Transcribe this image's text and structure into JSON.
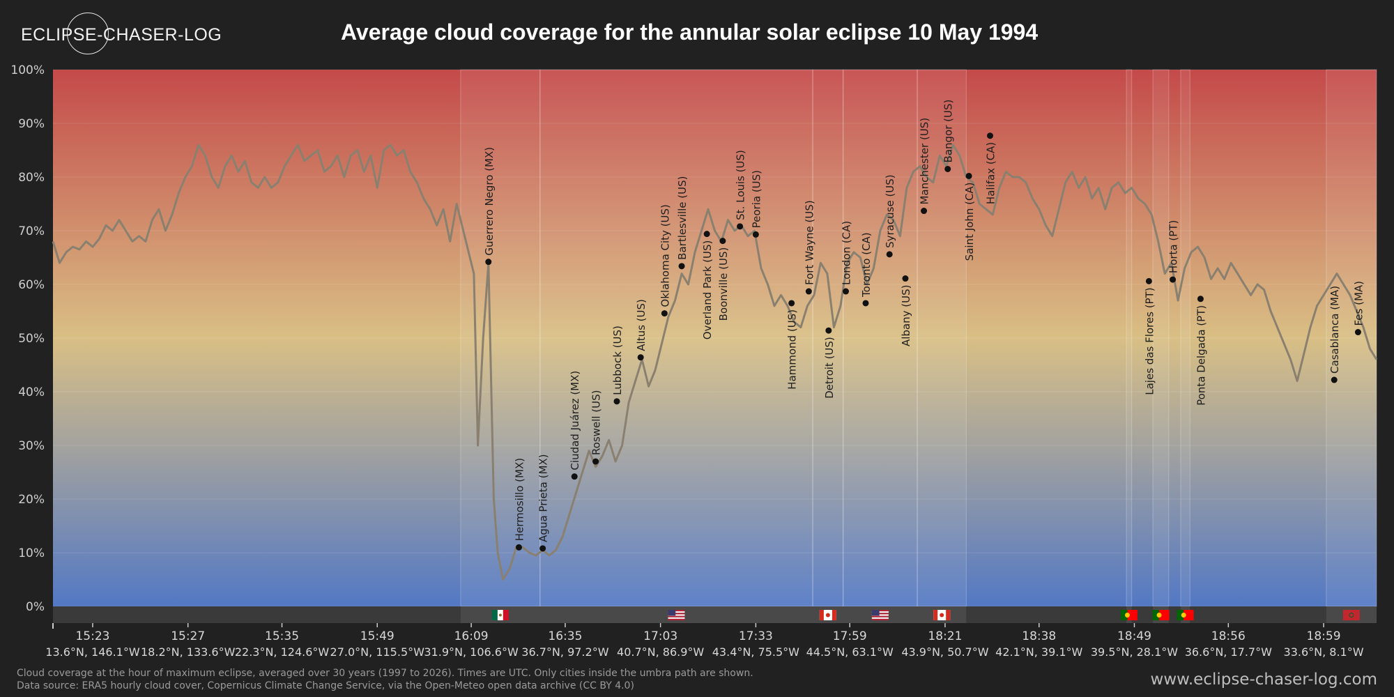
{
  "brand": {
    "name": "ECLIPSE-CHASER-LOG"
  },
  "header": {
    "title": "Average cloud coverage for the annular solar eclipse 10 May 1994"
  },
  "footer": {
    "note": "Cloud coverage at the hour of maximum eclipse, averaged over 30 years (1997 to 2026). Times are UTC. Only cities inside the umbra path are shown.",
    "source": "Data source: ERA5 hourly cloud cover, Copernicus Climate Change Service, via the Open-Meteo open data archive (CC BY 4.0)",
    "website": "www.eclipse-chaser-log.com"
  },
  "colors": {
    "background": "#212121",
    "gradient_top": "#c44a4a",
    "gradient_mid": "#d9bf85",
    "gradient_bottom": "#5378c4",
    "line": "#8a8070",
    "band": "#3a3a3a"
  },
  "chart_data": {
    "type": "line",
    "ylim": [
      0,
      100
    ],
    "y_ticks": [
      "0%",
      "10%",
      "20%",
      "30%",
      "40%",
      "50%",
      "60%",
      "70%",
      "80%",
      "90%",
      "100%"
    ],
    "x_domain": [
      0,
      100
    ],
    "x_ticks": [
      {
        "x": 3.0,
        "time": "15:23",
        "coord": "13.6°N, 146.1°W"
      },
      {
        "x": 10.2,
        "time": "15:27",
        "coord": "18.2°N, 133.6°W"
      },
      {
        "x": 17.3,
        "time": "15:35",
        "coord": "22.3°N, 124.6°W"
      },
      {
        "x": 24.5,
        "time": "15:49",
        "coord": "27.0°N, 115.5°W"
      },
      {
        "x": 31.6,
        "time": "16:09",
        "coord": "31.9°N, 106.6°W"
      },
      {
        "x": 38.7,
        "time": "16:35",
        "coord": "36.7°N, 97.2°W"
      },
      {
        "x": 45.9,
        "time": "17:03",
        "coord": "40.7°N, 86.9°W"
      },
      {
        "x": 53.1,
        "time": "17:33",
        "coord": "43.4°N, 75.5°W"
      },
      {
        "x": 60.2,
        "time": "17:59",
        "coord": "44.5°N, 63.1°W"
      },
      {
        "x": 67.4,
        "time": "18:21",
        "coord": "43.9°N, 50.7°W"
      },
      {
        "x": 74.5,
        "time": "18:38",
        "coord": "42.1°N, 39.1°W"
      },
      {
        "x": 81.7,
        "time": "18:49",
        "coord": "39.5°N, 28.1°W"
      },
      {
        "x": 88.8,
        "time": "18:56",
        "coord": "36.6°N, 17.7°W"
      },
      {
        "x": 96.0,
        "time": "18:59",
        "coord": "33.6°N, 8.1°W"
      }
    ],
    "series": [
      {
        "points": [
          [
            0,
            68
          ],
          [
            0.5,
            64
          ],
          [
            1,
            66
          ],
          [
            1.5,
            67
          ],
          [
            2,
            66.5
          ],
          [
            2.5,
            68
          ],
          [
            3,
            67
          ],
          [
            3.5,
            68.5
          ],
          [
            4,
            71
          ],
          [
            4.5,
            70
          ],
          [
            5,
            72
          ],
          [
            5.5,
            70
          ],
          [
            6,
            68
          ],
          [
            6.5,
            69
          ],
          [
            7,
            68
          ],
          [
            7.5,
            72
          ],
          [
            8,
            74
          ],
          [
            8.5,
            70
          ],
          [
            9,
            73
          ],
          [
            9.5,
            77
          ],
          [
            10,
            80
          ],
          [
            10.5,
            82
          ],
          [
            11,
            86
          ],
          [
            11.5,
            84
          ],
          [
            12,
            80
          ],
          [
            12.5,
            78
          ],
          [
            13,
            82
          ],
          [
            13.5,
            84
          ],
          [
            14,
            81
          ],
          [
            14.5,
            83
          ],
          [
            15,
            79
          ],
          [
            15.5,
            78
          ],
          [
            16,
            80
          ],
          [
            16.5,
            78
          ],
          [
            17,
            79
          ],
          [
            17.5,
            82
          ],
          [
            18,
            84
          ],
          [
            18.5,
            86
          ],
          [
            19,
            83
          ],
          [
            19.5,
            84
          ],
          [
            20,
            85
          ],
          [
            20.5,
            81
          ],
          [
            21,
            82
          ],
          [
            21.5,
            84
          ],
          [
            22,
            80
          ],
          [
            22.5,
            84
          ],
          [
            23,
            85
          ],
          [
            23.5,
            81
          ],
          [
            24,
            84
          ],
          [
            24.5,
            78
          ],
          [
            25,
            85
          ],
          [
            25.5,
            86
          ],
          [
            26,
            84
          ],
          [
            26.5,
            85
          ],
          [
            27,
            81
          ],
          [
            27.5,
            79
          ],
          [
            28,
            76
          ],
          [
            28.5,
            74
          ],
          [
            29,
            71
          ],
          [
            29.5,
            74
          ],
          [
            30,
            68
          ],
          [
            30.5,
            75
          ],
          [
            31,
            70
          ],
          [
            31.8,
            62
          ],
          [
            32.1,
            30
          ],
          [
            32.5,
            50
          ],
          [
            32.9,
            64
          ],
          [
            33.3,
            20
          ],
          [
            33.6,
            10
          ],
          [
            34.0,
            5
          ],
          [
            34.5,
            7
          ],
          [
            35.0,
            11
          ],
          [
            35.5,
            11
          ],
          [
            36.0,
            10
          ],
          [
            36.5,
            9.5
          ],
          [
            37.0,
            10.5
          ],
          [
            37.5,
            9.5
          ],
          [
            38.0,
            10.5
          ],
          [
            38.5,
            13
          ],
          [
            39.0,
            17
          ],
          [
            39.5,
            21
          ],
          [
            40.0,
            25
          ],
          [
            40.5,
            29
          ],
          [
            41.0,
            26
          ],
          [
            41.5,
            28
          ],
          [
            42.0,
            31
          ],
          [
            42.5,
            27
          ],
          [
            43.0,
            30
          ],
          [
            43.5,
            38
          ],
          [
            44.0,
            42
          ],
          [
            44.5,
            46
          ],
          [
            45.0,
            41
          ],
          [
            45.5,
            44
          ],
          [
            46.0,
            49
          ],
          [
            46.5,
            54
          ],
          [
            47.0,
            57
          ],
          [
            47.5,
            62
          ],
          [
            48.0,
            60
          ],
          [
            48.5,
            66
          ],
          [
            49.0,
            70
          ],
          [
            49.5,
            74
          ],
          [
            50.0,
            70
          ],
          [
            50.5,
            68
          ],
          [
            51.0,
            72
          ],
          [
            51.5,
            70
          ],
          [
            52.0,
            71
          ],
          [
            52.5,
            69
          ],
          [
            53.0,
            70
          ],
          [
            53.5,
            63
          ],
          [
            54.0,
            60
          ],
          [
            54.5,
            56
          ],
          [
            55.0,
            58
          ],
          [
            55.5,
            56
          ],
          [
            56.0,
            53
          ],
          [
            56.5,
            52
          ],
          [
            57.0,
            56
          ],
          [
            57.5,
            58
          ],
          [
            58.0,
            64
          ],
          [
            58.5,
            62
          ],
          [
            59.0,
            52
          ],
          [
            59.5,
            56
          ],
          [
            60.0,
            64
          ],
          [
            60.5,
            66
          ],
          [
            61.0,
            65
          ],
          [
            61.5,
            60
          ],
          [
            62.0,
            63
          ],
          [
            62.5,
            70
          ],
          [
            63.0,
            73
          ],
          [
            63.5,
            72
          ],
          [
            64.0,
            69
          ],
          [
            64.5,
            78
          ],
          [
            65.0,
            81
          ],
          [
            65.5,
            82
          ],
          [
            66.0,
            80
          ],
          [
            66.5,
            79
          ],
          [
            67.0,
            84
          ],
          [
            67.5,
            82
          ],
          [
            68.0,
            86
          ],
          [
            68.5,
            84
          ],
          [
            69.0,
            80
          ],
          [
            69.5,
            79
          ],
          [
            70.0,
            75
          ],
          [
            70.5,
            74
          ],
          [
            71.0,
            73
          ],
          [
            71.5,
            78
          ],
          [
            72.0,
            81
          ],
          [
            72.5,
            80
          ],
          [
            73.0,
            80
          ],
          [
            73.5,
            79
          ],
          [
            74.0,
            76
          ],
          [
            74.5,
            74
          ],
          [
            75.0,
            71
          ],
          [
            75.5,
            69
          ],
          [
            76.0,
            74
          ],
          [
            76.5,
            79
          ],
          [
            77.0,
            81
          ],
          [
            77.5,
            78
          ],
          [
            78.0,
            80
          ],
          [
            78.5,
            76
          ],
          [
            79.0,
            78
          ],
          [
            79.5,
            74
          ],
          [
            80.0,
            78
          ],
          [
            80.5,
            79
          ],
          [
            81.0,
            77
          ],
          [
            81.5,
            78
          ],
          [
            82.0,
            76
          ],
          [
            82.5,
            75
          ],
          [
            83.0,
            73
          ],
          [
            83.5,
            68
          ],
          [
            84.0,
            62
          ],
          [
            84.5,
            64
          ],
          [
            85.0,
            57
          ],
          [
            85.5,
            63
          ],
          [
            86.0,
            66
          ],
          [
            86.5,
            67
          ],
          [
            87.0,
            65
          ],
          [
            87.5,
            61
          ],
          [
            88.0,
            63
          ],
          [
            88.5,
            61
          ],
          [
            89.0,
            64
          ],
          [
            89.5,
            62
          ],
          [
            90.0,
            60
          ],
          [
            90.5,
            58
          ],
          [
            91.0,
            60
          ],
          [
            91.5,
            59
          ],
          [
            92.0,
            55
          ],
          [
            92.5,
            52
          ],
          [
            93.0,
            49
          ],
          [
            93.5,
            46
          ],
          [
            94.0,
            42
          ],
          [
            94.5,
            47
          ],
          [
            95.0,
            52
          ],
          [
            95.5,
            56
          ],
          [
            96.0,
            58
          ],
          [
            96.5,
            60
          ],
          [
            97.0,
            62
          ],
          [
            97.5,
            60
          ],
          [
            98.0,
            58
          ],
          [
            98.5,
            55
          ],
          [
            99.0,
            52
          ],
          [
            99.5,
            48
          ],
          [
            100.0,
            46
          ]
        ]
      }
    ],
    "cities": [
      {
        "name": "Guerrero Negro (MX)",
        "x": 32.9,
        "y": 64.2,
        "label_pos": "above"
      },
      {
        "name": "Hermosillo (MX)",
        "x": 35.2,
        "y": 11,
        "label_pos": "above"
      },
      {
        "name": "Agua Prieta (MX)",
        "x": 37.0,
        "y": 10.8,
        "label_pos": "above"
      },
      {
        "name": "Ciudad Juárez (MX)",
        "x": 39.4,
        "y": 24.2,
        "label_pos": "above"
      },
      {
        "name": "Roswell (US)",
        "x": 41.0,
        "y": 27,
        "label_pos": "above"
      },
      {
        "name": "Lubbock (US)",
        "x": 42.6,
        "y": 38.2,
        "label_pos": "above"
      },
      {
        "name": "Altus (US)",
        "x": 44.4,
        "y": 46.4,
        "label_pos": "above"
      },
      {
        "name": "Oklahoma City (US)",
        "x": 46.2,
        "y": 54.6,
        "label_pos": "above"
      },
      {
        "name": "Bartlesville (US)",
        "x": 47.5,
        "y": 63.4,
        "label_pos": "above"
      },
      {
        "name": "Overland Park (US)",
        "x": 49.4,
        "y": 69.4,
        "label_pos": "below"
      },
      {
        "name": "Boonville (US)",
        "x": 50.6,
        "y": 68.1,
        "label_pos": "below"
      },
      {
        "name": "St. Louis (US)",
        "x": 51.9,
        "y": 70.8,
        "label_pos": "above"
      },
      {
        "name": "Peoria (US)",
        "x": 53.1,
        "y": 69.3,
        "label_pos": "above"
      },
      {
        "name": "Hammond (US)",
        "x": 55.8,
        "y": 56.5,
        "label_pos": "below"
      },
      {
        "name": "Fort Wayne (US)",
        "x": 57.1,
        "y": 58.7,
        "label_pos": "above"
      },
      {
        "name": "Detroit (US)",
        "x": 58.6,
        "y": 51.4,
        "label_pos": "below"
      },
      {
        "name": "London (CA)",
        "x": 59.9,
        "y": 58.7,
        "label_pos": "above"
      },
      {
        "name": "Toronto (CA)",
        "x": 61.4,
        "y": 56.5,
        "label_pos": "above"
      },
      {
        "name": "Syracuse (US)",
        "x": 63.2,
        "y": 65.6,
        "label_pos": "above"
      },
      {
        "name": "Albany (US)",
        "x": 64.4,
        "y": 61.1,
        "label_pos": "below"
      },
      {
        "name": "Manchester (US)",
        "x": 65.8,
        "y": 73.7,
        "label_pos": "above"
      },
      {
        "name": "Bangor (US)",
        "x": 67.6,
        "y": 81.5,
        "label_pos": "above"
      },
      {
        "name": "Saint John (CA)",
        "x": 69.2,
        "y": 80.2,
        "label_pos": "below"
      },
      {
        "name": "Halifax (CA)",
        "x": 70.8,
        "y": 87.7,
        "label_pos": "below"
      },
      {
        "name": "Lajes das Flores (PT)",
        "x": 82.8,
        "y": 60.6,
        "label_pos": "below"
      },
      {
        "name": "Horta (PT)",
        "x": 84.6,
        "y": 60.9,
        "label_pos": "above"
      },
      {
        "name": "Ponta Delgada (PT)",
        "x": 86.7,
        "y": 57.3,
        "label_pos": "below"
      },
      {
        "name": "Casablanca (MA)",
        "x": 96.8,
        "y": 42.2,
        "label_pos": "above"
      },
      {
        "name": "Fes (MA)",
        "x": 98.6,
        "y": 51.1,
        "label_pos": "above"
      }
    ],
    "country_regions": [
      {
        "country": "MX",
        "from": 30.8,
        "to": 36.8,
        "flag": "mexico-flag-icon"
      },
      {
        "country": "US",
        "from": 36.8,
        "to": 57.4,
        "flag": "usa-flag-icon"
      },
      {
        "country": "CA",
        "from": 57.4,
        "to": 59.7,
        "flag": "canada-flag-icon"
      },
      {
        "country": "US",
        "from": 59.7,
        "to": 65.3,
        "flag": "usa-flag-icon"
      },
      {
        "country": "CA",
        "from": 65.3,
        "to": 69.0,
        "flag": "canada-flag-icon"
      },
      {
        "country": "PT",
        "from": 81.1,
        "to": 81.5,
        "flag": "portugal-flag-icon"
      },
      {
        "country": "PT",
        "from": 83.1,
        "to": 84.3,
        "flag": "portugal-flag-icon"
      },
      {
        "country": "PT",
        "from": 85.2,
        "to": 85.9,
        "flag": "portugal-flag-icon"
      },
      {
        "country": "MA",
        "from": 96.2,
        "to": 100,
        "flag": "morocco-flag-icon"
      }
    ]
  }
}
